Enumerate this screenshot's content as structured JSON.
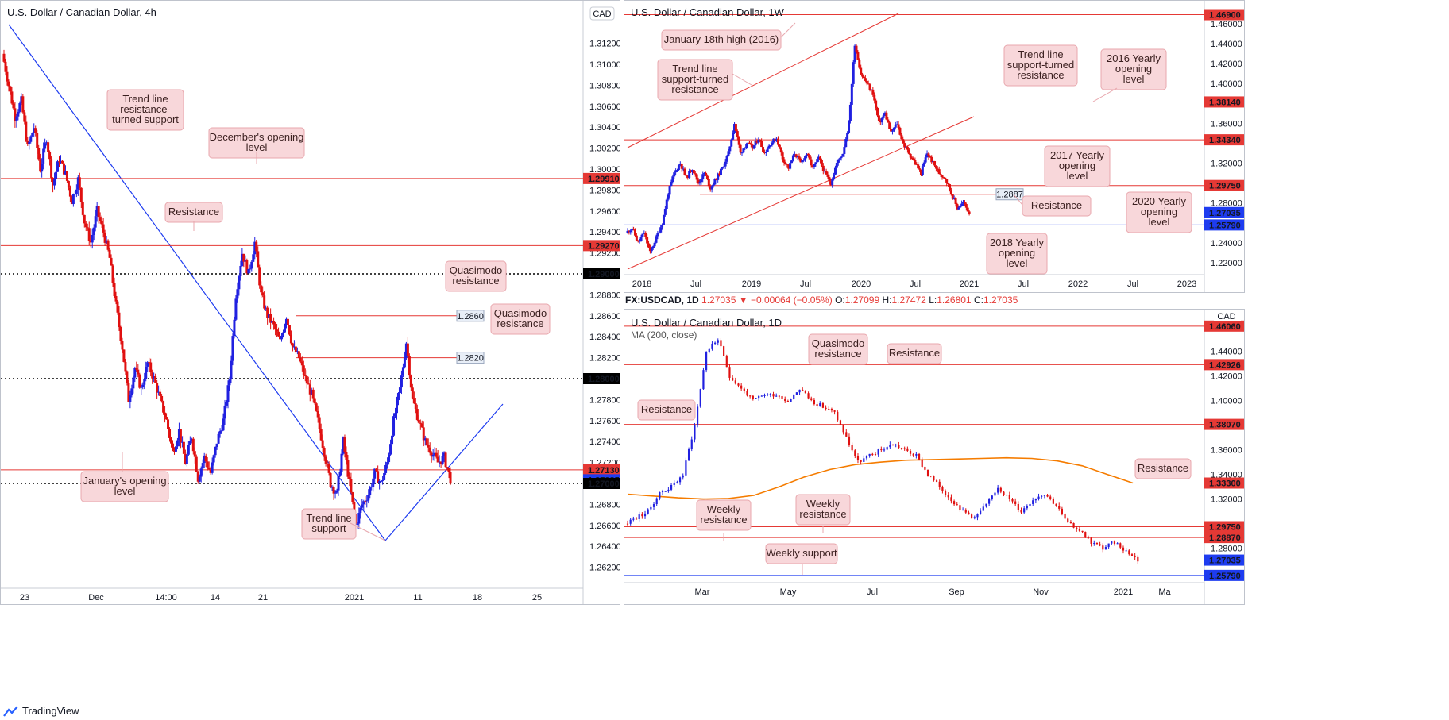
{
  "panel1": {
    "title": "U.S. Dollar / Canadian Dollar, 4h",
    "currency_button": "CAD"
  },
  "panel2": {
    "title": "U.S. Dollar / Canadian Dollar, 1W"
  },
  "panel3": {
    "title": "U.S. Dollar / Canadian Dollar, 1D",
    "ma_label": "MA (200, close)",
    "currency": "CAD"
  },
  "info_bar": {
    "symbol": "FX:USDCAD, 1D",
    "last": "1.27035",
    "change": "▼ −0.00064 (−0.05%)",
    "open_label": "O:",
    "open": "1.27099",
    "high_label": "H:",
    "high": "1.27472",
    "low_label": "L:",
    "low": "1.26801",
    "close_label": "C:",
    "close": "1.27035"
  },
  "footer": {
    "brand": "TradingView"
  },
  "colors": {
    "up": "#2020e0",
    "down": "#e01010",
    "resistance": "#e53935",
    "trend": "#1e3cf0",
    "badge_red": "#e53935",
    "badge_blue": "#1e3cf0",
    "badge_black": "#000000",
    "ma": "#f57c00",
    "callout_bg": "#f8d7da",
    "callout_border": "#e8a7ad"
  },
  "chart_data": [
    {
      "type": "candlestick",
      "title": "U.S. Dollar / Canadian Dollar, 4h",
      "x_tick_labels": [
        "23",
        "Dec",
        "14:00",
        "14",
        "21",
        "2021",
        "11",
        "18",
        "25"
      ],
      "y_ticks": [
        "1.31200",
        "1.31000",
        "1.30800",
        "1.30600",
        "1.30400",
        "1.30200",
        "1.30000",
        "1.29800",
        "1.29600",
        "1.29400",
        "1.29200",
        "1.28800",
        "1.28600",
        "1.28400",
        "1.28200",
        "1.27800",
        "1.27600",
        "1.27400",
        "1.27200",
        "1.26800",
        "1.26600",
        "1.26400",
        "1.26200"
      ],
      "ylim": [
        1.26,
        1.315
      ],
      "levels": [
        {
          "label": "1.29910",
          "value": 1.2991,
          "style": "red"
        },
        {
          "label": "1.29270",
          "value": 1.2927,
          "style": "red"
        },
        {
          "label": "1.29000",
          "value": 1.29,
          "style": "dotted"
        },
        {
          "label": "1.28000",
          "value": 1.28,
          "style": "dotted"
        },
        {
          "label": "1.27130",
          "value": 1.2713,
          "style": "red"
        },
        {
          "label": "1.27035",
          "value": 1.27035,
          "style": "current"
        },
        {
          "label": "1.27000",
          "value": 1.27,
          "style": "dotted"
        }
      ],
      "tagged_levels": [
        {
          "label": "1.2860",
          "value": 1.286
        },
        {
          "label": "1.2820",
          "value": 1.282
        }
      ],
      "annotations": [
        "Trend line resistance-turned support",
        "December's opening level",
        "Resistance",
        "Quasimodo resistance",
        "Quasimodo resistance",
        "January's opening level",
        "Trend line support"
      ],
      "close_path": [
        1.311,
        1.308,
        1.305,
        1.3065,
        1.302,
        1.304,
        1.3,
        1.303,
        1.2985,
        1.301,
        1.2995,
        1.297,
        1.299,
        1.295,
        1.293,
        1.296,
        1.294,
        1.2915,
        1.287,
        1.283,
        1.278,
        1.281,
        1.279,
        1.2815,
        1.28,
        1.278,
        1.276,
        1.273,
        1.275,
        1.272,
        1.2745,
        1.2705,
        1.2725,
        1.271,
        1.274,
        1.276,
        1.28,
        1.288,
        1.292,
        1.29,
        1.293,
        1.288,
        1.286,
        1.285,
        1.2835,
        1.286,
        1.283,
        1.282,
        1.28,
        1.2785,
        1.276,
        1.273,
        1.27,
        1.269,
        1.274,
        1.27,
        1.266,
        1.268,
        1.269,
        1.271,
        1.27,
        1.272,
        1.276,
        1.279,
        1.2835,
        1.278,
        1.276,
        1.274,
        1.273,
        1.272,
        1.2725,
        1.2704
      ]
    },
    {
      "type": "candlestick",
      "title": "U.S. Dollar / Canadian Dollar, 1W",
      "x_tick_labels": [
        "2018",
        "Jul",
        "2019",
        "Jul",
        "2020",
        "Jul",
        "2021",
        "Jul",
        "2022",
        "Jul",
        "2023"
      ],
      "y_ticks": [
        "1.46000",
        "1.44000",
        "1.42000",
        "1.40000",
        "1.36000",
        "1.32000",
        "1.28000",
        "1.24000",
        "1.22000"
      ],
      "ylim": [
        1.208,
        1.475
      ],
      "levels": [
        {
          "label": "1.46900",
          "value": 1.469,
          "style": "red"
        },
        {
          "label": "1.38140",
          "value": 1.3814,
          "style": "red"
        },
        {
          "label": "1.34340",
          "value": 1.3434,
          "style": "red"
        },
        {
          "label": "1.29750",
          "value": 1.2975,
          "style": "red"
        },
        {
          "label": "1.27035",
          "value": 1.27035,
          "style": "current"
        },
        {
          "label": "1.25790",
          "value": 1.2579,
          "style": "blue"
        }
      ],
      "tagged_levels": [
        {
          "label": "1.2887",
          "value": 1.2887
        }
      ],
      "annotations": [
        "January 18th high (2016)",
        "Trend line support-turned resistance",
        "Trend line support-turned resistance",
        "2016 Yearly opening level",
        "2017 Yearly opening level",
        "Resistance",
        "2020 Yearly opening level",
        "2018 Yearly opening level"
      ],
      "close_path": [
        1.25,
        1.255,
        1.24,
        1.25,
        1.23,
        1.245,
        1.26,
        1.29,
        1.31,
        1.32,
        1.305,
        1.315,
        1.3,
        1.31,
        1.295,
        1.305,
        1.315,
        1.33,
        1.36,
        1.33,
        1.34,
        1.335,
        1.345,
        1.33,
        1.34,
        1.345,
        1.325,
        1.315,
        1.33,
        1.32,
        1.33,
        1.315,
        1.325,
        1.31,
        1.3,
        1.32,
        1.33,
        1.36,
        1.44,
        1.41,
        1.4,
        1.39,
        1.36,
        1.37,
        1.35,
        1.36,
        1.34,
        1.33,
        1.32,
        1.31,
        1.33,
        1.32,
        1.31,
        1.305,
        1.29,
        1.275,
        1.28,
        1.2704
      ]
    },
    {
      "type": "candlestick",
      "title": "U.S. Dollar / Canadian Dollar, 1D",
      "x_tick_labels": [
        "Mar",
        "May",
        "Jul",
        "Sep",
        "Nov",
        "2021",
        "Ma"
      ],
      "y_ticks": [
        "1.44000",
        "1.42000",
        "1.40000",
        "1.36000",
        "1.34000",
        "1.32000",
        "1.28000",
        "1.26000"
      ],
      "ylim": [
        1.252,
        1.465
      ],
      "levels": [
        {
          "label": "1.46060",
          "value": 1.4606,
          "style": "red"
        },
        {
          "label": "1.42926",
          "value": 1.42926,
          "style": "red"
        },
        {
          "label": "1.38070",
          "value": 1.3807,
          "style": "red"
        },
        {
          "label": "1.33300",
          "value": 1.333,
          "style": "red"
        },
        {
          "label": "1.29750",
          "value": 1.2975,
          "style": "red"
        },
        {
          "label": "1.28870",
          "value": 1.2887,
          "style": "red"
        },
        {
          "label": "1.27035",
          "value": 1.27035,
          "style": "current"
        },
        {
          "label": "1.25790",
          "value": 1.2579,
          "style": "blue"
        }
      ],
      "annotations": [
        "Quasimodo resistance",
        "Resistance",
        "Resistance",
        "Resistance",
        "Weekly resistance",
        "Weekly resistance",
        "Weekly support"
      ],
      "ma_200": [
        1.324,
        1.3225,
        1.321,
        1.32,
        1.3205,
        1.323,
        1.33,
        1.338,
        1.344,
        1.348,
        1.35,
        1.3515,
        1.352,
        1.3525,
        1.353,
        1.3535,
        1.353,
        1.351,
        1.347,
        1.34,
        1.333
      ],
      "close_path": [
        1.3,
        1.305,
        1.31,
        1.325,
        1.33,
        1.34,
        1.38,
        1.44,
        1.45,
        1.42,
        1.41,
        1.4,
        1.405,
        1.405,
        1.4,
        1.41,
        1.4,
        1.395,
        1.39,
        1.37,
        1.35,
        1.355,
        1.36,
        1.365,
        1.36,
        1.355,
        1.34,
        1.33,
        1.32,
        1.31,
        1.305,
        1.315,
        1.33,
        1.32,
        1.31,
        1.32,
        1.325,
        1.315,
        1.3,
        1.295,
        1.285,
        1.28,
        1.285,
        1.278,
        1.2704
      ]
    }
  ]
}
